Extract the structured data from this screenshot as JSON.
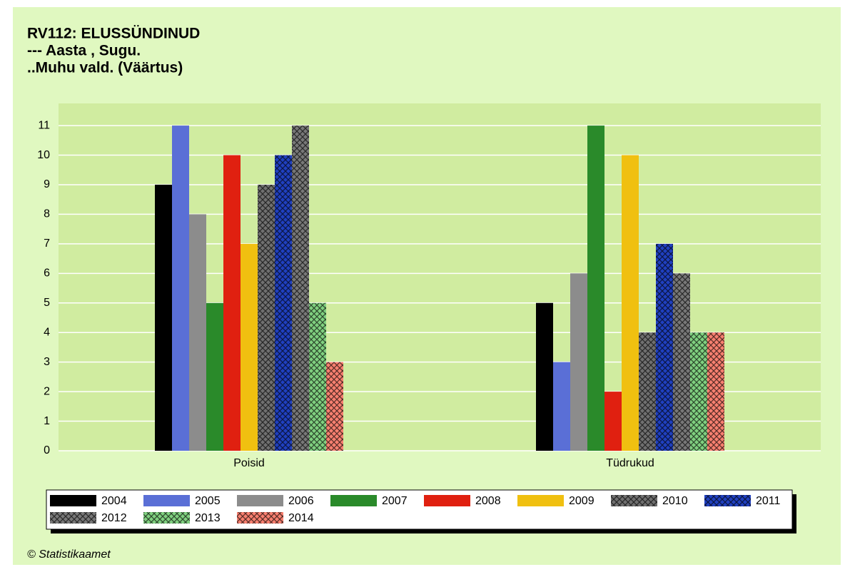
{
  "chart_data": {
    "type": "bar",
    "title": "RV112: ELUSSÜNDINUD",
    "subtitle": [
      "--- Aasta , Sugu.",
      "..Muhu vald. (Väärtus)"
    ],
    "source": "© Statistikaamet",
    "categories": [
      "Poisid",
      "Tüdrukud"
    ],
    "series": [
      {
        "name": "2004",
        "color": "#000000",
        "hatch": false,
        "values": [
          9,
          5
        ]
      },
      {
        "name": "2005",
        "color": "#5a6fd6",
        "hatch": false,
        "values": [
          11,
          3
        ]
      },
      {
        "name": "2006",
        "color": "#8c8c8c",
        "hatch": false,
        "values": [
          8,
          6
        ]
      },
      {
        "name": "2007",
        "color": "#2a8a2a",
        "hatch": false,
        "values": [
          5,
          11
        ]
      },
      {
        "name": "2008",
        "color": "#e02010",
        "hatch": false,
        "values": [
          10,
          2
        ]
      },
      {
        "name": "2009",
        "color": "#f0c010",
        "hatch": false,
        "values": [
          7,
          10
        ]
      },
      {
        "name": "2010",
        "color": "#707070",
        "hatch": true,
        "values": [
          9,
          4
        ]
      },
      {
        "name": "2011",
        "color": "#2040c0",
        "hatch": true,
        "values": [
          10,
          7
        ]
      },
      {
        "name": "2012",
        "color": "#787878",
        "hatch": true,
        "values": [
          11,
          6
        ]
      },
      {
        "name": "2013",
        "color": "#80d080",
        "hatch": true,
        "values": [
          5,
          4
        ]
      },
      {
        "name": "2014",
        "color": "#f88070",
        "hatch": true,
        "values": [
          3,
          4
        ]
      }
    ],
    "ylim": [
      0,
      11.75
    ],
    "yticks": [
      0,
      1,
      2,
      3,
      4,
      5,
      6,
      7,
      8,
      9,
      10,
      11
    ],
    "grid": true,
    "legend": "bottom"
  }
}
